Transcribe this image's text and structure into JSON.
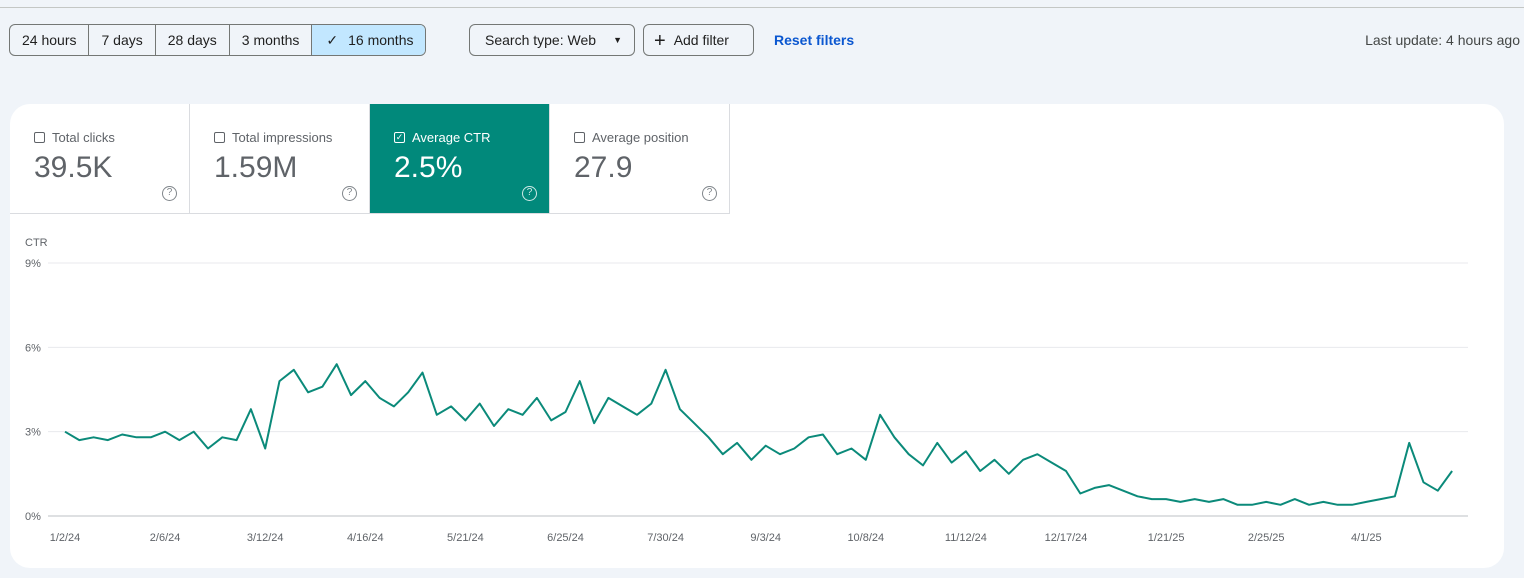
{
  "toolbar": {
    "ranges": [
      "24 hours",
      "7 days",
      "28 days",
      "3 months",
      "16 months"
    ],
    "selected_range": 4,
    "search_type": "Search type: Web",
    "add_filter": "Add filter",
    "reset": "Reset filters",
    "last_update": "Last update: 4 hours ago"
  },
  "metrics": [
    {
      "label": "Total clicks",
      "value": "39.5K"
    },
    {
      "label": "Total impressions",
      "value": "1.59M"
    },
    {
      "label": "Average CTR",
      "value": "2.5%"
    },
    {
      "label": "Average position",
      "value": "27.9"
    }
  ],
  "selected_metric": 2,
  "chart_data": {
    "type": "line",
    "y_label": "CTR",
    "color": "#0b8a7a",
    "grid": true,
    "ylim": [
      0,
      9
    ],
    "yticks": [
      {
        "value": 0,
        "label": "0%"
      },
      {
        "value": 3,
        "label": "3%"
      },
      {
        "value": 6,
        "label": "6%"
      },
      {
        "value": 9,
        "label": "9%"
      }
    ],
    "categories": [
      "1/2/24",
      null,
      null,
      null,
      null,
      null,
      null,
      "2/6/24",
      null,
      null,
      null,
      null,
      null,
      null,
      "3/12/24",
      null,
      null,
      null,
      null,
      null,
      null,
      "4/16/24",
      null,
      null,
      null,
      null,
      null,
      null,
      "5/21/24",
      null,
      null,
      null,
      null,
      null,
      null,
      "6/25/24",
      null,
      null,
      null,
      null,
      null,
      null,
      "7/30/24",
      null,
      null,
      null,
      null,
      null,
      null,
      "9/3/24",
      null,
      null,
      null,
      null,
      null,
      null,
      "10/8/24",
      null,
      null,
      null,
      null,
      null,
      null,
      "11/12/24",
      null,
      null,
      null,
      null,
      null,
      null,
      "12/17/24",
      null,
      null,
      null,
      null,
      null,
      null,
      "1/21/25",
      null,
      null,
      null,
      null,
      null,
      null,
      "2/25/25",
      null,
      null,
      null,
      null,
      null,
      null,
      "4/1/25",
      null,
      null,
      null,
      null,
      null,
      null
    ],
    "series": [
      {
        "name": "Average CTR",
        "values": [
          3.0,
          2.7,
          2.8,
          2.7,
          2.9,
          2.8,
          2.8,
          3.0,
          2.7,
          3.0,
          2.4,
          2.8,
          2.7,
          3.8,
          2.4,
          4.8,
          5.2,
          4.4,
          4.6,
          5.4,
          4.3,
          4.8,
          4.2,
          3.9,
          4.4,
          5.1,
          3.6,
          3.9,
          3.4,
          4.0,
          3.2,
          3.8,
          3.6,
          4.2,
          3.4,
          3.7,
          4.8,
          3.3,
          4.2,
          3.9,
          3.6,
          4.0,
          5.2,
          3.8,
          3.3,
          2.8,
          2.2,
          2.6,
          2.0,
          2.5,
          2.2,
          2.4,
          2.8,
          2.9,
          2.2,
          2.4,
          2.0,
          3.6,
          2.8,
          2.2,
          1.8,
          2.6,
          1.9,
          2.3,
          1.6,
          2.0,
          1.5,
          2.0,
          2.2,
          1.9,
          1.6,
          0.8,
          1.0,
          1.1,
          0.9,
          0.7,
          0.6,
          0.6,
          0.5,
          0.6,
          0.5,
          0.6,
          0.4,
          0.4,
          0.5,
          0.4,
          0.6,
          0.4,
          0.5,
          0.4,
          0.4,
          0.5,
          0.6,
          0.7,
          2.6,
          1.2,
          0.9,
          1.6
        ]
      }
    ]
  }
}
